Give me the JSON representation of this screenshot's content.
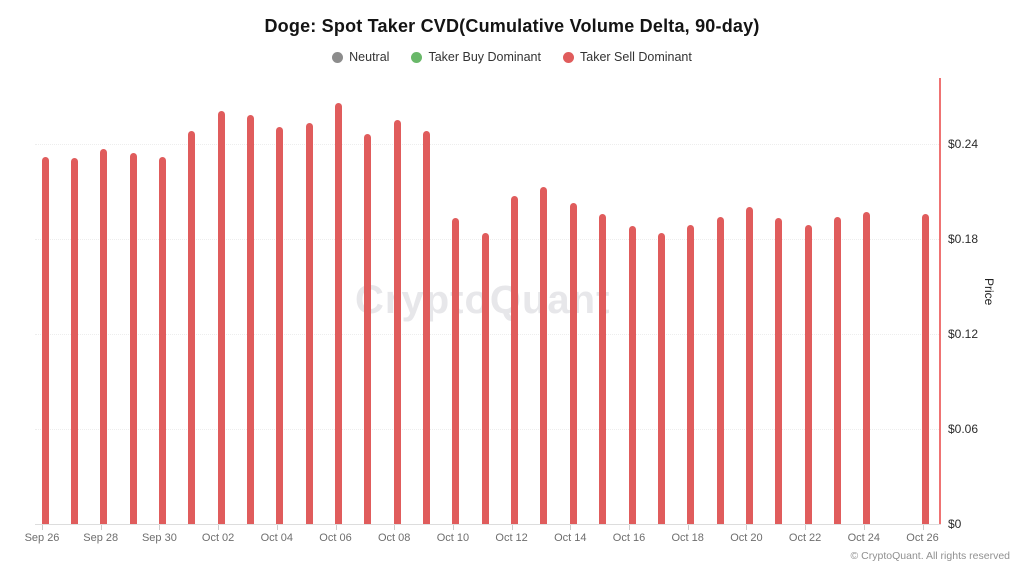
{
  "title": "Doge: Spot Taker CVD(Cumulative Volume Delta, 90-day)",
  "legend": [
    {
      "label": "Neutral",
      "color": "#8c8c8c"
    },
    {
      "label": "Taker Buy Dominant",
      "color": "#69b869"
    },
    {
      "label": "Taker Sell Dominant",
      "color": "#e05c5c"
    }
  ],
  "watermark": "CryptoQuant",
  "footer": "© CryptoQuant. All rights reserved",
  "colors": {
    "bar": "#e05c5c",
    "right_axis_line": "#ef7373",
    "gridline": "#ededed",
    "baseline": "#dddddd"
  },
  "chart_data": {
    "type": "bar",
    "title": "Doge: Spot Taker CVD(Cumulative Volume Delta, 90-day)",
    "series_name": "Taker Sell Dominant",
    "x": [
      "Sep 26",
      "Sep 27",
      "Sep 28",
      "Sep 29",
      "Sep 30",
      "Oct 01",
      "Oct 02",
      "Oct 03",
      "Oct 04",
      "Oct 05",
      "Oct 06",
      "Oct 07",
      "Oct 08",
      "Oct 09",
      "Oct 10",
      "Oct 11",
      "Oct 12",
      "Oct 13",
      "Oct 14",
      "Oct 15",
      "Oct 16",
      "Oct 17",
      "Oct 18",
      "Oct 19",
      "Oct 20",
      "Oct 21",
      "Oct 22",
      "Oct 23",
      "Oct 24",
      "Oct 25",
      "Oct 26"
    ],
    "values": [
      0.232,
      0.231,
      0.237,
      0.234,
      0.232,
      0.248,
      0.261,
      0.258,
      0.251,
      0.253,
      0.266,
      0.246,
      0.255,
      0.248,
      0.193,
      0.184,
      0.207,
      0.213,
      0.203,
      0.196,
      0.188,
      0.184,
      0.189,
      0.194,
      0.2,
      0.193,
      0.189,
      0.194,
      0.197,
      null,
      0.196
    ],
    "xlabel": "",
    "ylabel": "Price",
    "ylim": [
      0,
      0.281
    ],
    "yticks": [
      {
        "value": 0.24,
        "label": "$0.24"
      },
      {
        "value": 0.18,
        "label": "$0.18"
      },
      {
        "value": 0.12,
        "label": "$0.12"
      },
      {
        "value": 0.06,
        "label": "$0.06"
      },
      {
        "value": 0.0,
        "label": "$0"
      }
    ],
    "x_tick_labels": [
      "Sep 26",
      "Sep 28",
      "Sep 30",
      "Oct 02",
      "Oct 04",
      "Oct 06",
      "Oct 08",
      "Oct 10",
      "Oct 12",
      "Oct 14",
      "Oct 16",
      "Oct 18",
      "Oct 20",
      "Oct 22",
      "Oct 24",
      "Oct 26"
    ],
    "grid": "horizontal-dotted",
    "legend_position": "top-center",
    "notes": "Bars colored by dominant state; all visible bars are Taker Sell Dominant (red). No bar rendered for Oct 25."
  }
}
